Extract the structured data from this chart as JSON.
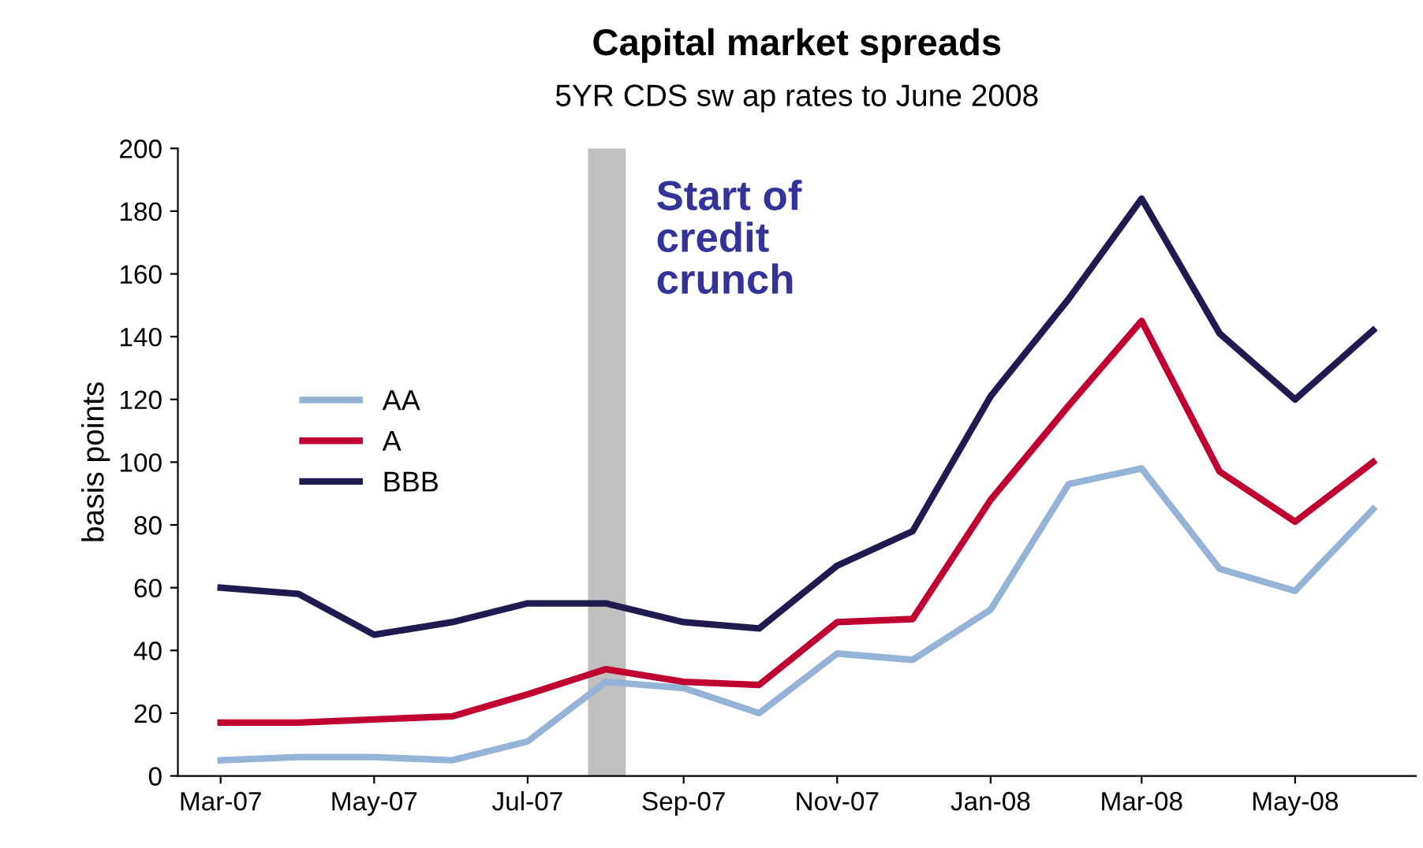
{
  "chart_data": {
    "type": "line",
    "title": "Capital market spreads",
    "subtitle": "5YR CDS sw ap rates to June 2008",
    "ylabel": "basis points",
    "x": [
      "2007-03",
      "2007-04",
      "2007-05",
      "2007-06",
      "2007-07",
      "2007-08",
      "2007-09",
      "2007-10",
      "2007-11",
      "2007-12",
      "2008-01",
      "2008-02",
      "2008-03",
      "2008-04",
      "2008-05",
      "2008-06"
    ],
    "series": [
      {
        "name": "AA",
        "color": "#95b3d7",
        "values": [
          5,
          6,
          6,
          5,
          11,
          30,
          28,
          20,
          39,
          37,
          53,
          93,
          98,
          66,
          59,
          85
        ]
      },
      {
        "name": "A",
        "color": "#c00030",
        "values": [
          17,
          17,
          18,
          19,
          26,
          34,
          30,
          29,
          49,
          50,
          88,
          118,
          145,
          97,
          81,
          100
        ]
      },
      {
        "name": "BBB",
        "color": "#1f1a4f",
        "values": [
          60,
          58,
          45,
          49,
          55,
          55,
          49,
          47,
          67,
          78,
          121,
          152,
          184,
          141,
          120,
          142
        ]
      }
    ],
    "xlim": [
      "2007-02-12",
      "2008-06-18"
    ],
    "xticks": [
      {
        "value": "2007-03",
        "label": "Mar-07"
      },
      {
        "value": "2007-05",
        "label": "May-07"
      },
      {
        "value": "2007-07",
        "label": "Jul-07"
      },
      {
        "value": "2007-09",
        "label": "Sep-07"
      },
      {
        "value": "2007-11",
        "label": "Nov-07"
      },
      {
        "value": "2008-01",
        "label": "Jan-08"
      },
      {
        "value": "2008-03",
        "label": "Mar-08"
      },
      {
        "value": "2008-05",
        "label": "May-08"
      }
    ],
    "ylim": [
      0,
      200
    ],
    "yticks": [
      0,
      20,
      40,
      60,
      80,
      100,
      120,
      140,
      160,
      180,
      200
    ],
    "bands": [
      {
        "axis": "x",
        "from": "2007-07-25",
        "to": "2007-08-09",
        "label": "Start of\ncredit\ncrunch",
        "color": "#bfbfbf"
      }
    ],
    "grid": false,
    "legend": "left",
    "marker": "none",
    "line_style": "solid"
  }
}
